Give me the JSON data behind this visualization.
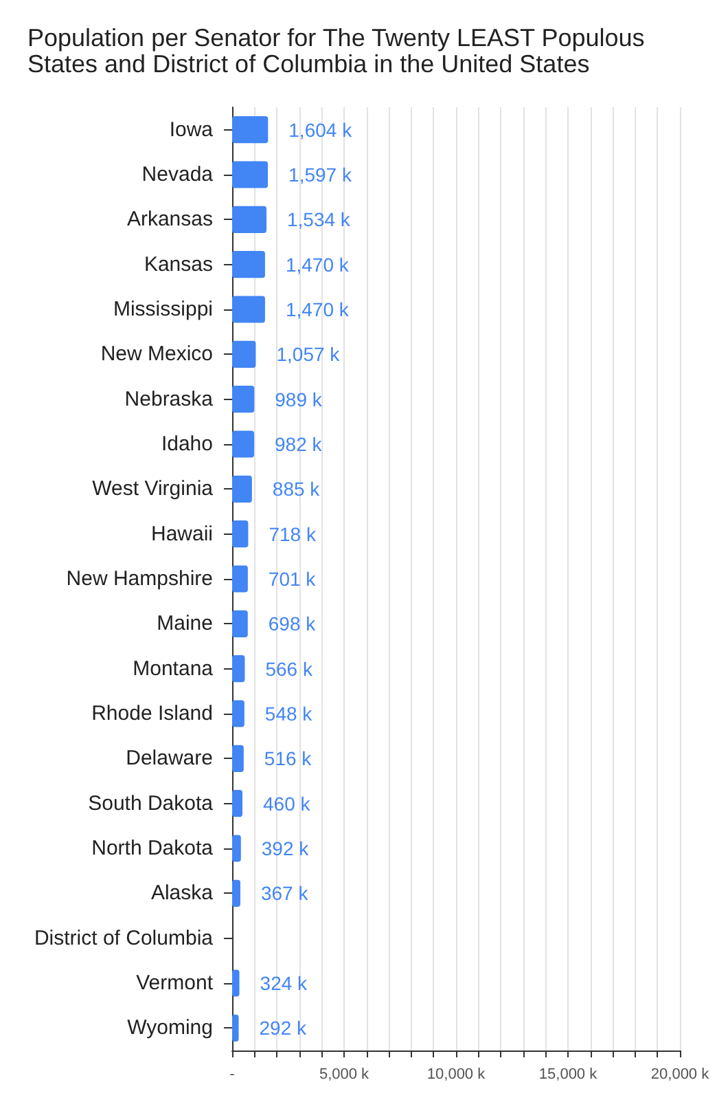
{
  "chart_data": {
    "type": "bar",
    "orientation": "horizontal",
    "title": "Population per Senator for The Twenty LEAST Populous States and District of Columbia in the United States",
    "categories": [
      "Iowa",
      "Nevada",
      "Arkansas",
      "Kansas",
      "Mississippi",
      "New Mexico",
      "Nebraska",
      "Idaho",
      "West Virginia",
      "Hawaii",
      "New Hampshire",
      "Maine",
      "Montana",
      "Rhode Island",
      "Delaware",
      "South Dakota",
      "North Dakota",
      "Alaska",
      "District of Columbia",
      "Vermont",
      "Wyoming"
    ],
    "values": [
      1604,
      1597,
      1534,
      1470,
      1470,
      1057,
      989,
      982,
      885,
      718,
      701,
      698,
      566,
      548,
      516,
      460,
      392,
      367,
      null,
      324,
      292
    ],
    "value_labels": [
      "1,604 k",
      "1,597 k",
      "1,534 k",
      "1,470 k",
      "1,470 k",
      "1,057 k",
      "989 k",
      "982 k",
      "885 k",
      "718 k",
      "701 k",
      "698 k",
      "566 k",
      "548 k",
      "516 k",
      "460 k",
      "392 k",
      "367 k",
      null,
      "324 k",
      "292 k"
    ],
    "color": "#4285f4",
    "xlim": [
      0,
      20000
    ],
    "xticks": [
      {
        "value": 0,
        "label": "-"
      },
      {
        "value": 1000,
        "label": null
      },
      {
        "value": 2000,
        "label": null
      },
      {
        "value": 3000,
        "label": null
      },
      {
        "value": 4000,
        "label": null
      },
      {
        "value": 5000,
        "label": "5,000 k"
      },
      {
        "value": 6000,
        "label": null
      },
      {
        "value": 7000,
        "label": null
      },
      {
        "value": 8000,
        "label": null
      },
      {
        "value": 9000,
        "label": null
      },
      {
        "value": 10000,
        "label": "10,000 k"
      },
      {
        "value": 11000,
        "label": null
      },
      {
        "value": 12000,
        "label": null
      },
      {
        "value": 13000,
        "label": null
      },
      {
        "value": 14000,
        "label": null
      },
      {
        "value": 15000,
        "label": "15,000 k"
      },
      {
        "value": 16000,
        "label": null
      },
      {
        "value": 17000,
        "label": null
      },
      {
        "value": 18000,
        "label": null
      },
      {
        "value": 19000,
        "label": null
      },
      {
        "value": 20000,
        "label": "20,000 k"
      }
    ],
    "grid": "x"
  }
}
